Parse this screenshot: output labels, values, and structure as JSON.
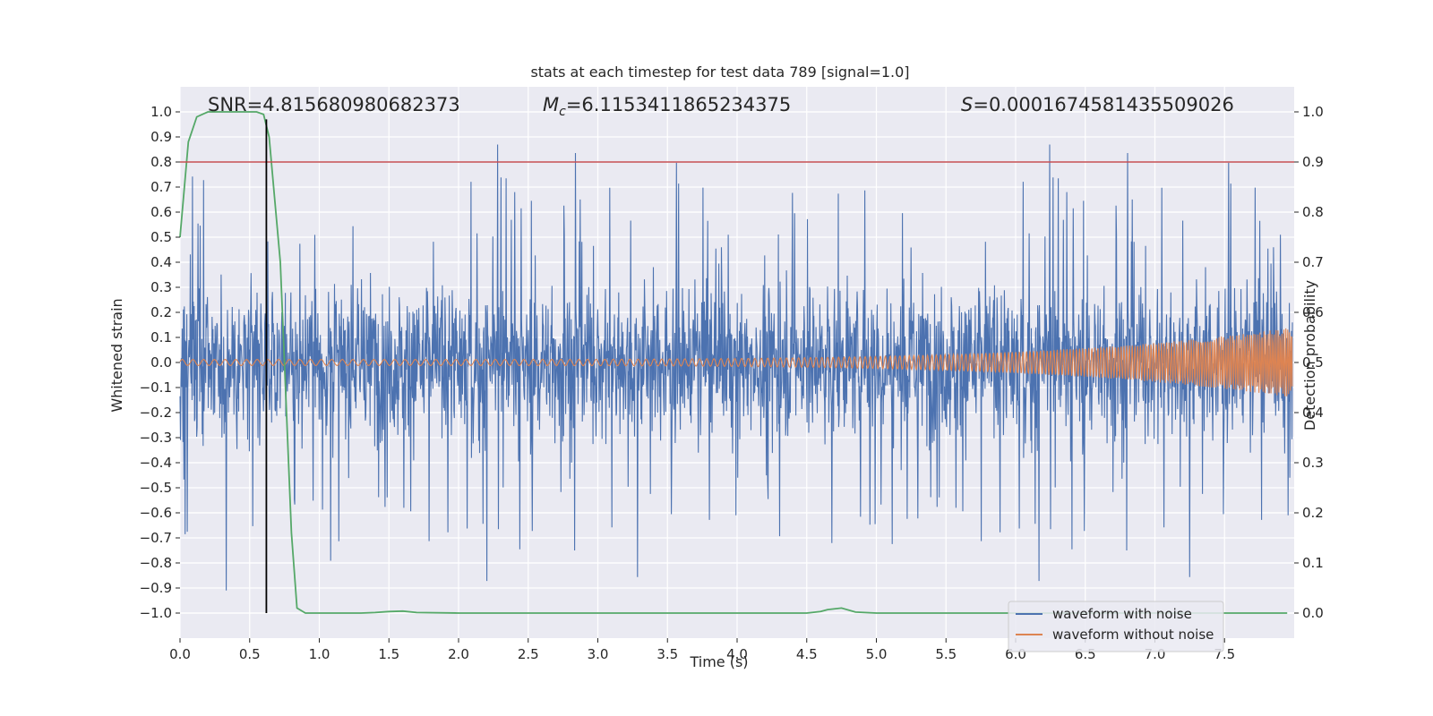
{
  "chart_data": {
    "type": "line",
    "title": "stats at each timestep for test data 789 [signal=1.0]",
    "xlabel": "Time (s)",
    "ylabel_left": "Whitened strain",
    "ylabel_right": "Detection probability",
    "xlim": [
      0.0,
      8.0
    ],
    "ylim_left": [
      -1.1,
      1.1
    ],
    "ylim_right": [
      -0.05,
      1.05
    ],
    "x_ticks": [
      "0.0",
      "0.5",
      "1.0",
      "1.5",
      "2.0",
      "2.5",
      "3.0",
      "3.5",
      "4.0",
      "4.5",
      "5.0",
      "5.5",
      "6.0",
      "6.5",
      "7.0",
      "7.5"
    ],
    "y_left_ticks": [
      "1.0",
      "0.9",
      "0.8",
      "0.7",
      "0.6",
      "0.5",
      "0.4",
      "0.3",
      "0.2",
      "0.1",
      "0.0",
      "−0.1",
      "−0.2",
      "−0.3",
      "−0.4",
      "−0.5",
      "−0.6",
      "−0.7",
      "−0.8",
      "−0.9",
      "−1.0"
    ],
    "y_right_ticks": [
      "1.0",
      "0.9",
      "0.8",
      "0.7",
      "0.6",
      "0.5",
      "0.4",
      "0.3",
      "0.2",
      "0.1",
      "0.0"
    ],
    "annotations": {
      "snr": "SNR=4.815680980682373",
      "mc_symbol": "M",
      "mc_sub": "c",
      "mc_value": "=6.1153411865234375",
      "s_symbol": "S",
      "s_value": "=0.0001674581435509026"
    },
    "threshold_probability": 0.9,
    "detection_time": 0.62,
    "series": [
      {
        "name": "waveform with noise",
        "color": "#4c72b0",
        "axis": "left",
        "description": "noisy whitened strain, envelope roughly ±0.4 with spikes to ±1.0",
        "envelope": 0.38,
        "spike_max": 0.97
      },
      {
        "name": "waveform without noise",
        "color": "#dd8452",
        "axis": "left",
        "description": "chirp signal growing in amplitude toward the end",
        "start_amplitude": 0.012,
        "end_amplitude": 0.14
      },
      {
        "name": "detection probability",
        "color": "#55a868",
        "axis": "right",
        "x": [
          0.0,
          0.06,
          0.12,
          0.2,
          0.3,
          0.45,
          0.55,
          0.6,
          0.64,
          0.72,
          0.8,
          0.84,
          0.9,
          1.0,
          1.3,
          1.4,
          1.5,
          1.6,
          1.7,
          2.0,
          4.5,
          4.6,
          4.65,
          4.75,
          4.85,
          5.0,
          7.95
        ],
        "y": [
          0.75,
          0.94,
          0.99,
          1.0,
          1.0,
          1.0,
          1.0,
          0.995,
          0.95,
          0.7,
          0.16,
          0.01,
          0.0,
          0.0,
          0.0,
          0.001,
          0.003,
          0.004,
          0.001,
          0.0,
          0.0,
          0.003,
          0.007,
          0.01,
          0.002,
          0.0,
          0.0
        ]
      },
      {
        "name": "threshold",
        "color": "#c44e52",
        "axis": "right",
        "y_constant": 0.9
      }
    ],
    "legend": {
      "placement": "lower-right",
      "entries": [
        {
          "label": "waveform with noise",
          "color": "#4c72b0"
        },
        {
          "label": "waveform without noise",
          "color": "#dd8452"
        }
      ]
    },
    "grid": true
  }
}
